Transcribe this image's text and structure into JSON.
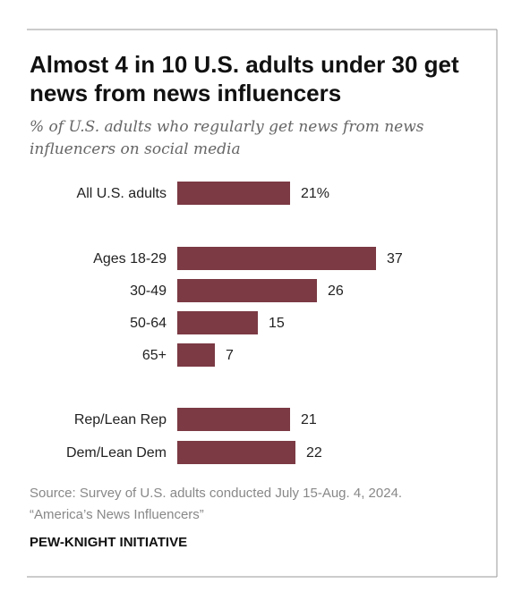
{
  "chart_data": {
    "type": "bar",
    "orientation": "horizontal",
    "title": "Almost 4 in 10 U.S. adults under 30 get news from news influencers",
    "subtitle": "% of U.S. adults who regularly get news from news influencers on social media",
    "categories": [
      "All U.S. adults",
      "Ages 18-29",
      "30-49",
      "50-64",
      "65+",
      "Rep/Lean Rep",
      "Dem/Lean Dem"
    ],
    "values": [
      21,
      37,
      26,
      15,
      7,
      21,
      22
    ],
    "value_labels": [
      "21%",
      "37",
      "26",
      "15",
      "7",
      "21",
      "22"
    ],
    "color": "#7b3a44",
    "source": "Source: Survey of U.S. adults conducted July 15-Aug. 4, 2024.",
    "note": "“America’s News Influencers”",
    "credit": "PEW-KNIGHT INITIATIVE"
  }
}
